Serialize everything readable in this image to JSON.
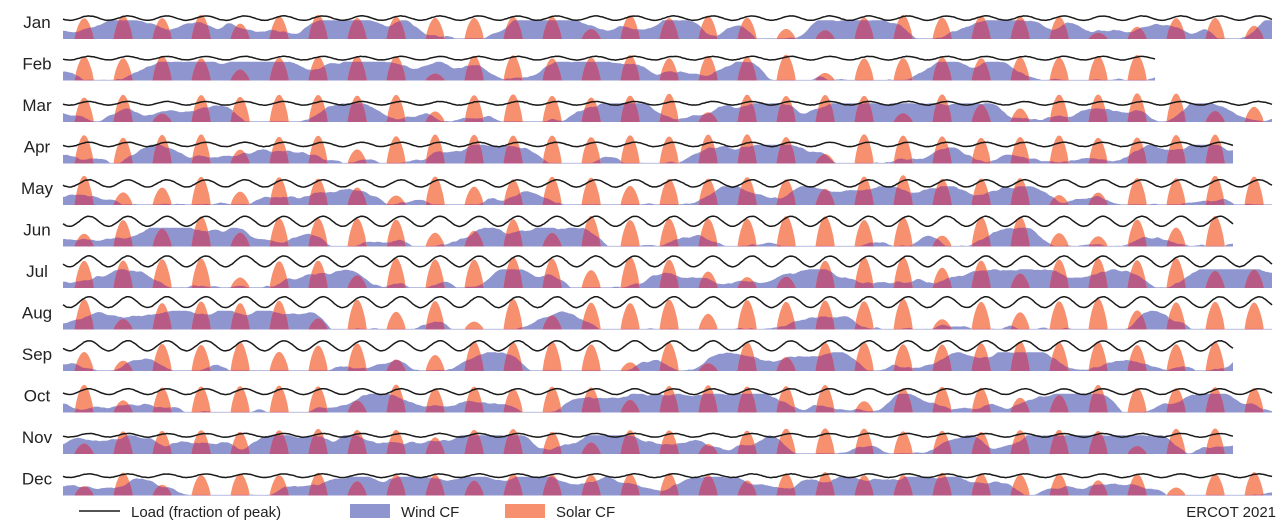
{
  "colors": {
    "wind": "#8f96cf",
    "solar": "#f7906e",
    "overlap": "#b85a86",
    "load": "#1a1a1a",
    "text": "#222222"
  },
  "legend": {
    "load_label": "Load (fraction of peak)",
    "wind_label": "Wind CF",
    "solar_label": "Solar CF"
  },
  "source_label": "ERCOT 2021",
  "chart_data": {
    "type": "area",
    "x_unit": "hour of month",
    "y_range": [
      0,
      1
    ],
    "grid": false,
    "legend_position": "bottom",
    "series_names": [
      "Load (fraction of peak)",
      "Wind CF",
      "Solar CF"
    ],
    "months": [
      {
        "label": "Jan",
        "days": 31,
        "load_mean": 0.58,
        "load_amp": 0.06,
        "wind_mean": 0.45,
        "solar_peak": 0.68
      },
      {
        "label": "Feb",
        "days": 28,
        "load_mean": 0.62,
        "load_amp": 0.05,
        "wind_mean": 0.42,
        "solar_peak": 0.72
      },
      {
        "label": "Mar",
        "days": 31,
        "load_mean": 0.52,
        "load_amp": 0.05,
        "wind_mean": 0.48,
        "solar_peak": 0.8
      },
      {
        "label": "Apr",
        "days": 30,
        "load_mean": 0.53,
        "load_amp": 0.06,
        "wind_mean": 0.46,
        "solar_peak": 0.82
      },
      {
        "label": "May",
        "days": 31,
        "load_mean": 0.6,
        "load_amp": 0.1,
        "wind_mean": 0.4,
        "solar_peak": 0.83
      },
      {
        "label": "Jun",
        "days": 30,
        "load_mean": 0.7,
        "load_amp": 0.14,
        "wind_mean": 0.36,
        "solar_peak": 0.86
      },
      {
        "label": "Jul",
        "days": 31,
        "load_mean": 0.74,
        "load_amp": 0.15,
        "wind_mean": 0.3,
        "solar_peak": 0.87
      },
      {
        "label": "Aug",
        "days": 31,
        "load_mean": 0.76,
        "load_amp": 0.15,
        "wind_mean": 0.28,
        "solar_peak": 0.86
      },
      {
        "label": "Sep",
        "days": 30,
        "load_mean": 0.7,
        "load_amp": 0.14,
        "wind_mean": 0.32,
        "solar_peak": 0.83
      },
      {
        "label": "Oct",
        "days": 31,
        "load_mean": 0.58,
        "load_amp": 0.08,
        "wind_mean": 0.44,
        "solar_peak": 0.78
      },
      {
        "label": "Nov",
        "days": 30,
        "load_mean": 0.52,
        "load_amp": 0.05,
        "wind_mean": 0.47,
        "solar_peak": 0.72
      },
      {
        "label": "Dec",
        "days": 31,
        "load_mean": 0.55,
        "load_amp": 0.05,
        "wind_mean": 0.46,
        "solar_peak": 0.66
      }
    ]
  }
}
